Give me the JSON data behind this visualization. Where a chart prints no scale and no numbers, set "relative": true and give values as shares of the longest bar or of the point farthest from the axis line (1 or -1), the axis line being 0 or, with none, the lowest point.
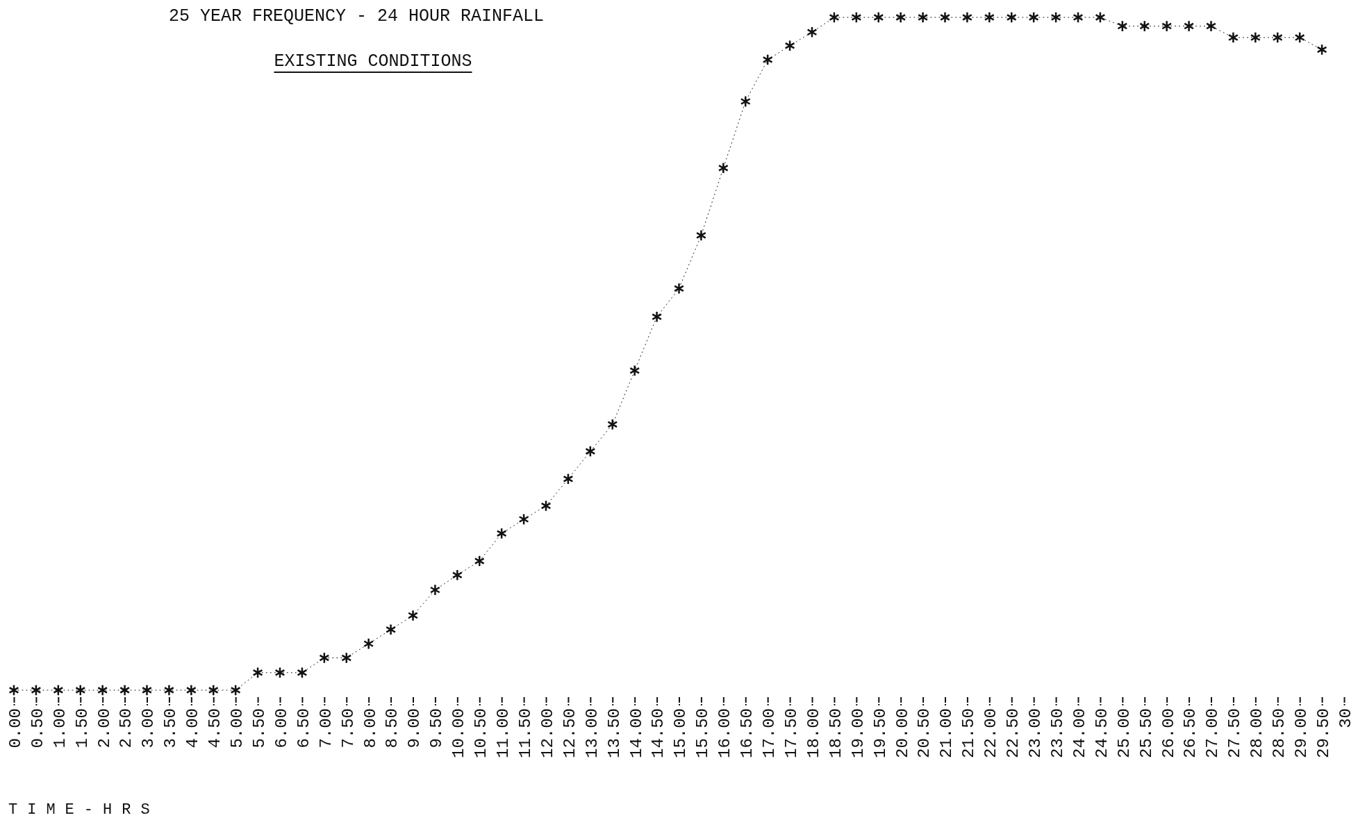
{
  "chart_data": {
    "type": "line",
    "line_style": "dotted",
    "title": "25 YEAR FREQUENCY - 24 HOUR RAINFALL",
    "subtitle": "EXISTING CONDITIONS",
    "xlabel": "TIME-HRS",
    "relative": true,
    "marker": "cross",
    "color": "#111111",
    "x": [
      0,
      0.5,
      1,
      1.5,
      2,
      2.5,
      3,
      3.5,
      4,
      4.5,
      5,
      5.5,
      6,
      6.5,
      7,
      7.5,
      8,
      8.5,
      9,
      9.5,
      10,
      10.5,
      11,
      11.5,
      12,
      12.5,
      13,
      13.5,
      14,
      14.5,
      15,
      15.5,
      16,
      16.5,
      17,
      17.5,
      18,
      18.5,
      19,
      19.5,
      20,
      20.5,
      21,
      21.5,
      22,
      22.5,
      23,
      23.5,
      24,
      24.5,
      25,
      25.5,
      26,
      26.5,
      27,
      27.5,
      28,
      28.5,
      29,
      29.5
    ],
    "values": [
      0,
      0,
      0,
      0,
      0,
      0,
      0,
      0,
      0,
      0,
      0,
      0.026,
      0.026,
      0.026,
      0.048,
      0.048,
      0.069,
      0.09,
      0.111,
      0.149,
      0.171,
      0.192,
      0.233,
      0.254,
      0.274,
      0.314,
      0.355,
      0.395,
      0.475,
      0.555,
      0.597,
      0.676,
      0.776,
      0.875,
      0.937,
      0.958,
      0.978,
      1,
      1,
      1,
      1,
      1,
      1,
      1,
      1,
      1,
      1,
      1,
      1,
      1,
      0.987,
      0.987,
      0.987,
      0.987,
      0.987,
      0.97,
      0.97,
      0.97,
      0.97,
      0.952
    ],
    "xlim": [
      0,
      30
    ],
    "xticks": [
      {
        "value": 0,
        "label": "0.00"
      },
      {
        "value": 0.5,
        "label": "0.50"
      },
      {
        "value": 1,
        "label": "1.00"
      },
      {
        "value": 1.5,
        "label": "1.50"
      },
      {
        "value": 2,
        "label": "2.00"
      },
      {
        "value": 2.5,
        "label": "2.50"
      },
      {
        "value": 3,
        "label": "3.00"
      },
      {
        "value": 3.5,
        "label": "3.50"
      },
      {
        "value": 4,
        "label": "4.00"
      },
      {
        "value": 4.5,
        "label": "4.50"
      },
      {
        "value": 5,
        "label": "5.00"
      },
      {
        "value": 5.5,
        "label": "5.50"
      },
      {
        "value": 6,
        "label": "6.00"
      },
      {
        "value": 6.5,
        "label": "6.50"
      },
      {
        "value": 7,
        "label": "7.00"
      },
      {
        "value": 7.5,
        "label": "7.50"
      },
      {
        "value": 8,
        "label": "8.00"
      },
      {
        "value": 8.5,
        "label": "8.50"
      },
      {
        "value": 9,
        "label": "9.00"
      },
      {
        "value": 9.5,
        "label": "9.50"
      },
      {
        "value": 10,
        "label": "10.00"
      },
      {
        "value": 10.5,
        "label": "10.50"
      },
      {
        "value": 11,
        "label": "11.00"
      },
      {
        "value": 11.5,
        "label": "11.50"
      },
      {
        "value": 12,
        "label": "12.00"
      },
      {
        "value": 12.5,
        "label": "12.50"
      },
      {
        "value": 13,
        "label": "13.00"
      },
      {
        "value": 13.5,
        "label": "13.50"
      },
      {
        "value": 14,
        "label": "14.00"
      },
      {
        "value": 14.5,
        "label": "14.50"
      },
      {
        "value": 15,
        "label": "15.00"
      },
      {
        "value": 15.5,
        "label": "15.50"
      },
      {
        "value": 16,
        "label": "16.00"
      },
      {
        "value": 16.5,
        "label": "16.50"
      },
      {
        "value": 17,
        "label": "17.00"
      },
      {
        "value": 17.5,
        "label": "17.50"
      },
      {
        "value": 18,
        "label": "18.00"
      },
      {
        "value": 18.5,
        "label": "18.50"
      },
      {
        "value": 19,
        "label": "19.00"
      },
      {
        "value": 19.5,
        "label": "19.50"
      },
      {
        "value": 20,
        "label": "20.00"
      },
      {
        "value": 20.5,
        "label": "20.50"
      },
      {
        "value": 21,
        "label": "21.00"
      },
      {
        "value": 21.5,
        "label": "21.50"
      },
      {
        "value": 22,
        "label": "22.00"
      },
      {
        "value": 22.5,
        "label": "22.50"
      },
      {
        "value": 23,
        "label": "23.00"
      },
      {
        "value": 23.5,
        "label": "23.50"
      },
      {
        "value": 24,
        "label": "24.00"
      },
      {
        "value": 24.5,
        "label": "24.50"
      },
      {
        "value": 25,
        "label": "25.00"
      },
      {
        "value": 25.5,
        "label": "25.50"
      },
      {
        "value": 26,
        "label": "26.00"
      },
      {
        "value": 26.5,
        "label": "26.50"
      },
      {
        "value": 27,
        "label": "27.00"
      },
      {
        "value": 27.5,
        "label": "27.50"
      },
      {
        "value": 28,
        "label": "28.00"
      },
      {
        "value": 28.5,
        "label": "28.50"
      },
      {
        "value": 29,
        "label": "29.00"
      },
      {
        "value": 29.5,
        "label": "29.50"
      },
      30
    ]
  }
}
